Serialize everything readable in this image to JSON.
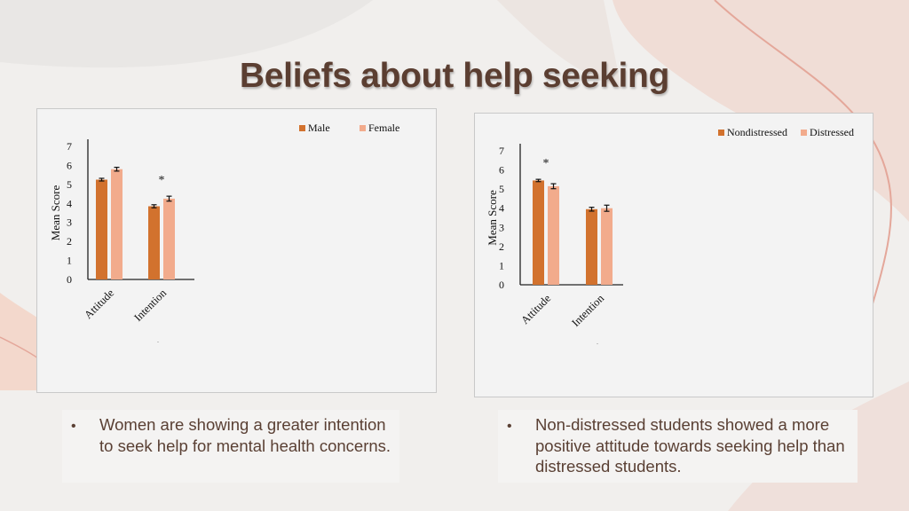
{
  "slide": {
    "title": "Beliefs about help seeking",
    "bullets": [
      "Women are showing a greater intention to seek help for mental health concerns.",
      "Non-distressed students showed a more positive attitude towards seeking help than distressed students."
    ],
    "bullet_symbol": "•"
  },
  "colors": {
    "series_dark": "#d2722e",
    "series_light": "#f2ab8c",
    "title": "#5b3e31",
    "body_text": "#5a4034"
  },
  "chart_data": [
    {
      "type": "bar",
      "categories": [
        "Attitude",
        "Intention"
      ],
      "series": [
        {
          "name": "Male",
          "values": [
            5.25,
            3.85
          ],
          "errors": [
            0.07,
            0.08
          ]
        },
        {
          "name": "Female",
          "values": [
            5.8,
            4.25
          ],
          "errors": [
            0.1,
            0.13
          ]
        }
      ],
      "ylabel": "Mean Score",
      "ylim": [
        0,
        7
      ],
      "yticks": [
        "0",
        "1",
        "2",
        "3",
        "4",
        "5",
        "6",
        "7"
      ],
      "annotations": [
        {
          "category_index": 1,
          "text": "*"
        }
      ],
      "legend_position": "top-right",
      "grid": false
    },
    {
      "type": "bar",
      "categories": [
        "Attitude",
        "Intention"
      ],
      "series": [
        {
          "name": "Nondistressed",
          "values": [
            5.45,
            3.95
          ],
          "errors": [
            0.06,
            0.1
          ]
        },
        {
          "name": "Distressed",
          "values": [
            5.15,
            4.0
          ],
          "errors": [
            0.13,
            0.16
          ]
        }
      ],
      "ylabel": "Mean Score",
      "ylim": [
        0,
        7
      ],
      "yticks": [
        "0",
        "1",
        "2",
        "3",
        "4",
        "5",
        "6",
        "7"
      ],
      "annotations": [
        {
          "category_index": 0,
          "text": "*"
        }
      ],
      "legend_position": "top-right",
      "grid": false
    }
  ]
}
